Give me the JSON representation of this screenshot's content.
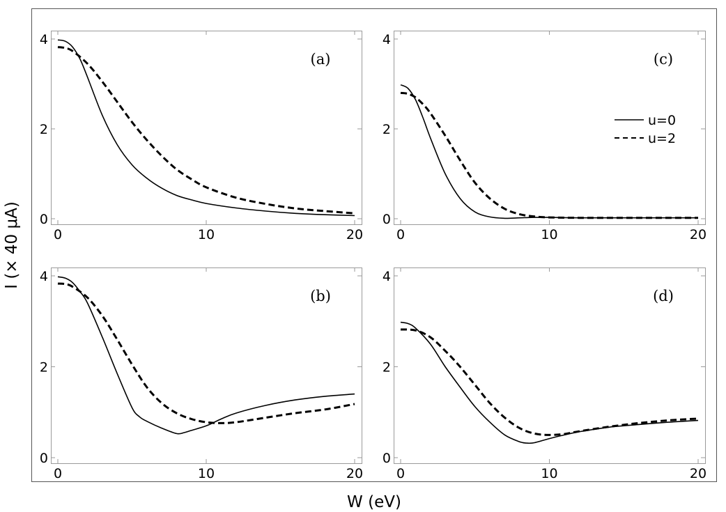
{
  "chart_data": {
    "type": "line",
    "xlabel": "W (eV)",
    "ylabel": "I (× 40 μA)",
    "legend": {
      "placement": "top-right of panel (c)",
      "entries": [
        {
          "name": "u=0",
          "style": "solid"
        },
        {
          "name": "u=2",
          "style": "dashed"
        }
      ]
    },
    "panels": [
      {
        "label": "(a)",
        "xlim": [
          0,
          20
        ],
        "ylim": [
          0,
          4.2
        ],
        "xticks": [
          0,
          10,
          20
        ],
        "yticks": [
          0,
          2,
          4
        ],
        "series": [
          {
            "name": "u=0",
            "style": "solid",
            "x": [
              0,
              0.5,
              1,
              1.5,
              2,
              3,
              4,
              5,
              6,
              7,
              8,
              9,
              10,
              12,
              14,
              16,
              18,
              20
            ],
            "y": [
              3.98,
              3.95,
              3.82,
              3.55,
              3.15,
              2.3,
              1.65,
              1.2,
              0.9,
              0.68,
              0.52,
              0.42,
              0.34,
              0.24,
              0.17,
              0.12,
              0.09,
              0.07
            ]
          },
          {
            "name": "u=2",
            "style": "dashed",
            "x": [
              0,
              0.5,
              1,
              2,
              3,
              4,
              5,
              6,
              7,
              8,
              9,
              10,
              12,
              14,
              16,
              18,
              20
            ],
            "y": [
              3.82,
              3.8,
              3.73,
              3.45,
              3.05,
              2.6,
              2.15,
              1.75,
              1.4,
              1.1,
              0.88,
              0.7,
              0.47,
              0.33,
              0.23,
              0.17,
              0.12
            ]
          }
        ]
      },
      {
        "label": "(c)",
        "xlim": [
          0,
          20
        ],
        "ylim": [
          0,
          4.2
        ],
        "xticks": [
          0,
          10,
          20
        ],
        "yticks": [
          0,
          2,
          4
        ],
        "series": [
          {
            "name": "u=0",
            "style": "solid",
            "x": [
              0,
              0.5,
              1,
              1.5,
              2,
              3,
              4,
              5,
              6,
              7,
              8,
              9,
              10,
              12,
              14,
              16,
              18,
              20
            ],
            "y": [
              2.98,
              2.9,
              2.65,
              2.25,
              1.8,
              1.0,
              0.45,
              0.15,
              0.04,
              0.01,
              0.02,
              0.03,
              0.03,
              0.02,
              0.02,
              0.02,
              0.02,
              0.02
            ]
          },
          {
            "name": "u=2",
            "style": "dashed",
            "x": [
              0,
              0.5,
              1,
              1.5,
              2,
              3,
              4,
              5,
              6,
              7,
              8,
              9,
              10,
              12,
              14,
              16,
              18,
              20
            ],
            "y": [
              2.8,
              2.78,
              2.7,
              2.55,
              2.35,
              1.85,
              1.3,
              0.8,
              0.45,
              0.22,
              0.1,
              0.05,
              0.03,
              0.02,
              0.02,
              0.02,
              0.02,
              0.02
            ]
          }
        ]
      },
      {
        "label": "(b)",
        "xlim": [
          0,
          20
        ],
        "ylim": [
          0,
          4.2
        ],
        "xticks": [
          0,
          10,
          20
        ],
        "yticks": [
          0,
          2,
          4
        ],
        "series": [
          {
            "name": "u=0",
            "style": "solid",
            "x": [
              0,
              0.5,
              1,
              1.5,
              2,
              3,
              4,
              5,
              5.5,
              6,
              7,
              8,
              8.5,
              9,
              10,
              11,
              12,
              14,
              16,
              18,
              20
            ],
            "y": [
              3.98,
              3.95,
              3.85,
              3.65,
              3.4,
              2.65,
              1.85,
              1.1,
              0.9,
              0.8,
              0.65,
              0.53,
              0.55,
              0.6,
              0.7,
              0.85,
              0.98,
              1.15,
              1.27,
              1.35,
              1.4
            ]
          },
          {
            "name": "u=2",
            "style": "dashed",
            "x": [
              0,
              0.5,
              1,
              2,
              3,
              4,
              5,
              6,
              7,
              8,
              9,
              10,
              11,
              12,
              14,
              16,
              18,
              20
            ],
            "y": [
              3.83,
              3.82,
              3.76,
              3.52,
              3.12,
              2.6,
              2.05,
              1.55,
              1.2,
              0.98,
              0.85,
              0.78,
              0.76,
              0.78,
              0.88,
              0.98,
              1.06,
              1.18
            ]
          }
        ]
      },
      {
        "label": "(d)",
        "xlim": [
          0,
          20
        ],
        "ylim": [
          0,
          4.2
        ],
        "xticks": [
          0,
          10,
          20
        ],
        "yticks": [
          0,
          2,
          4
        ],
        "series": [
          {
            "name": "u=0",
            "style": "solid",
            "x": [
              0,
              0.5,
              1,
              2,
              3,
              4,
              5,
              6,
              7,
              8,
              8.5,
              9,
              10,
              11,
              12,
              14,
              16,
              18,
              20
            ],
            "y": [
              2.98,
              2.95,
              2.85,
              2.5,
              2.0,
              1.55,
              1.12,
              0.78,
              0.5,
              0.35,
              0.32,
              0.33,
              0.42,
              0.5,
              0.57,
              0.67,
              0.73,
              0.78,
              0.82
            ]
          },
          {
            "name": "u=2",
            "style": "dashed",
            "x": [
              0,
              1,
              2,
              3,
              4,
              5,
              6,
              7,
              8,
              9,
              10,
              11,
              12,
              14,
              16,
              18,
              20
            ],
            "y": [
              2.82,
              2.8,
              2.65,
              2.35,
              2.0,
              1.6,
              1.2,
              0.88,
              0.65,
              0.53,
              0.5,
              0.52,
              0.58,
              0.68,
              0.76,
              0.82,
              0.86
            ]
          }
        ]
      }
    ]
  }
}
